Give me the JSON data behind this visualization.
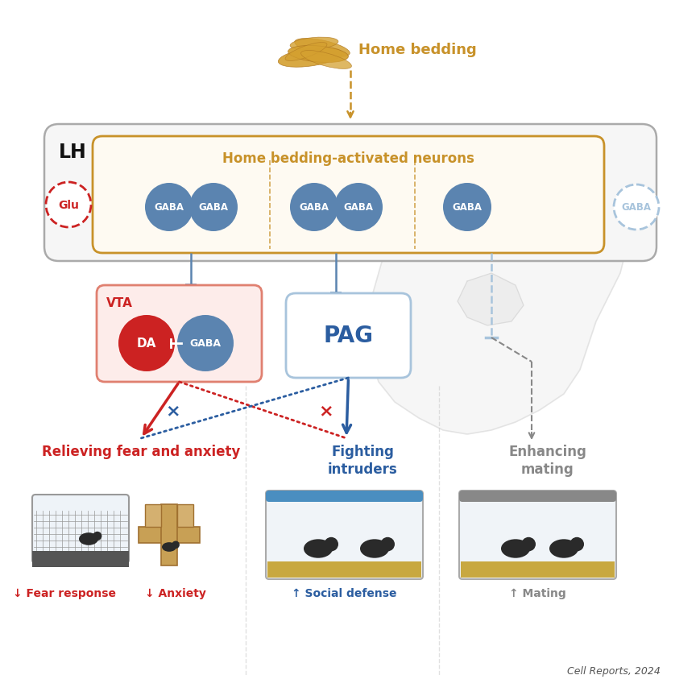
{
  "bg_color": "#ffffff",
  "gold_color": "#C8922A",
  "blue_color": "#5B84B0",
  "dark_blue_color": "#2B5DA0",
  "red_color": "#CC2222",
  "gray_color": "#888888",
  "light_blue_color": "#A8C4DC",
  "pale_red_bg": "#FDECEA",
  "pale_blue_bg": "#EAF2FB",
  "lh_bg": "#F6F6F6",
  "inner_bg": "#FEFAF2",
  "cell_reports_text": "Cell Reports, 2024",
  "home_bedding_text": "Home bedding",
  "lh_text": "LH",
  "activated_neurons_text": "Home bedding-activated neurons",
  "glu_text": "Glu",
  "gaba_text": "GABA",
  "vta_text": "VTA",
  "da_text": "DA",
  "pag_text": "PAG",
  "fear_text": "Relieving fear and anxiety",
  "fighting_text": "Fighting\nintruders",
  "mating_text": "Enhancing\nmating",
  "fear_response_text": "↓ Fear response",
  "anxiety_text": "↓ Anxiety",
  "social_defense_text": "↑ Social defense",
  "mating_result_text": "↑ Mating"
}
